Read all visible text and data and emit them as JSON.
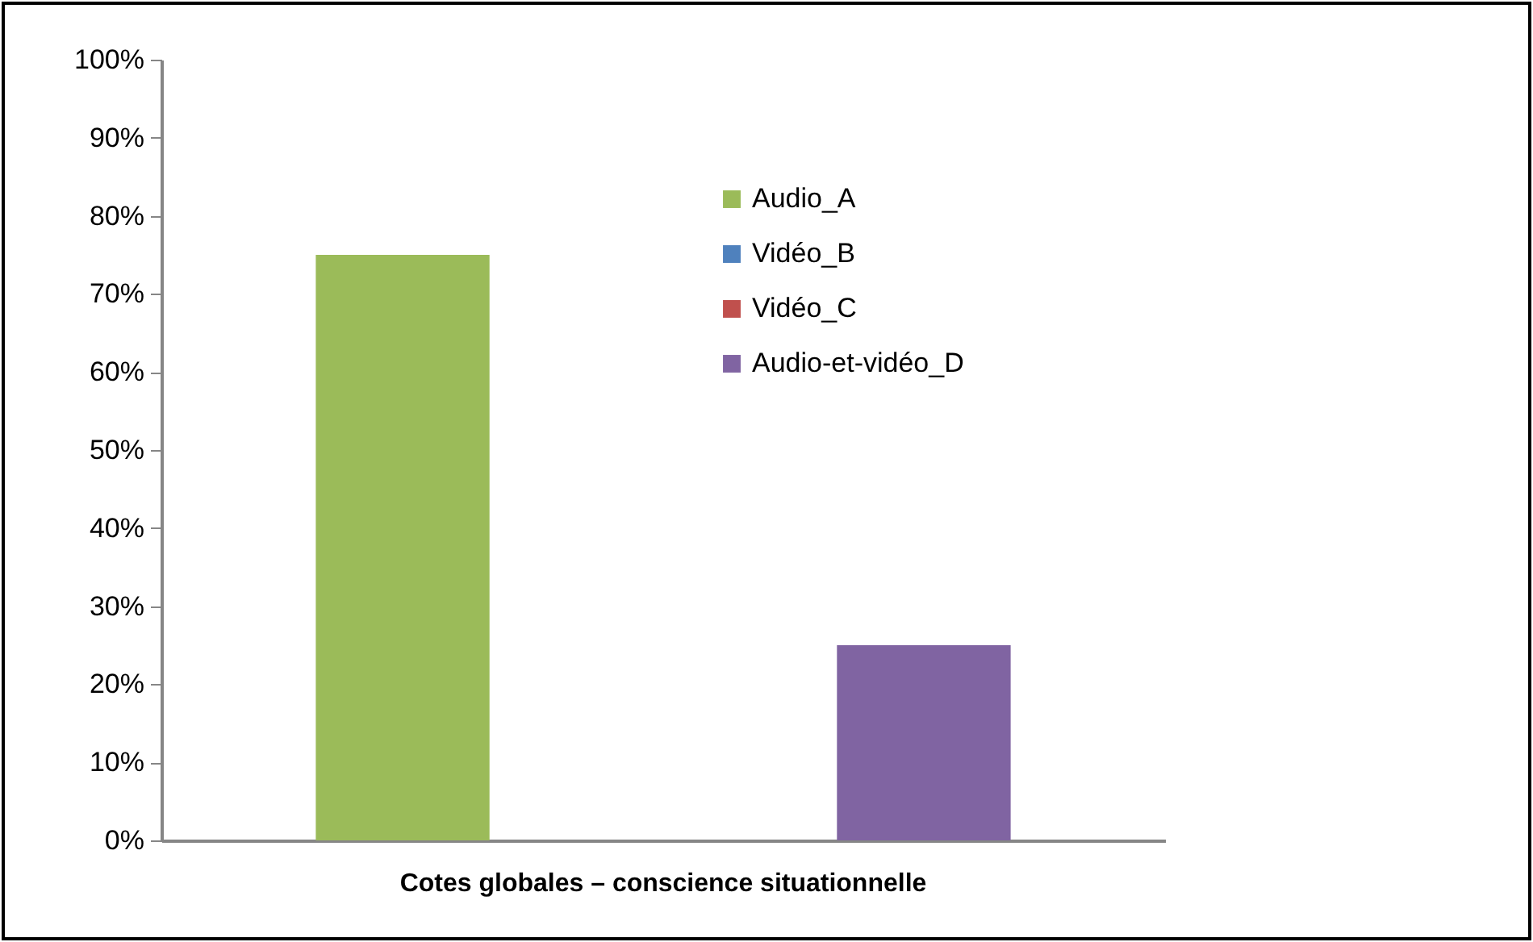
{
  "chart_data": {
    "type": "bar",
    "categories": [
      "Cotes globales – conscience situationnelle"
    ],
    "series": [
      {
        "name": "Audio_A",
        "color": "#9bbb59",
        "values": [
          75
        ]
      },
      {
        "name": "Vidéo_B",
        "color": "#4f81bd",
        "values": [
          0
        ]
      },
      {
        "name": "Vidéo_C",
        "color": "#c0504d",
        "values": [
          0
        ]
      },
      {
        "name": "Audio-et-vidéo_D",
        "color": "#8064a2",
        "values": [
          25
        ]
      }
    ],
    "ylim": [
      0,
      100
    ],
    "yticks": [
      {
        "value": 0,
        "label": "0%"
      },
      {
        "value": 10,
        "label": "10%"
      },
      {
        "value": 20,
        "label": "20%"
      },
      {
        "value": 30,
        "label": "30%"
      },
      {
        "value": 40,
        "label": "40%"
      },
      {
        "value": 50,
        "label": "50%"
      },
      {
        "value": 60,
        "label": "60%"
      },
      {
        "value": 70,
        "label": "70%"
      },
      {
        "value": 80,
        "label": "80%"
      },
      {
        "value": 90,
        "label": "90%"
      },
      {
        "value": 100,
        "label": "100%"
      }
    ],
    "grid": false,
    "legend": "top right"
  }
}
